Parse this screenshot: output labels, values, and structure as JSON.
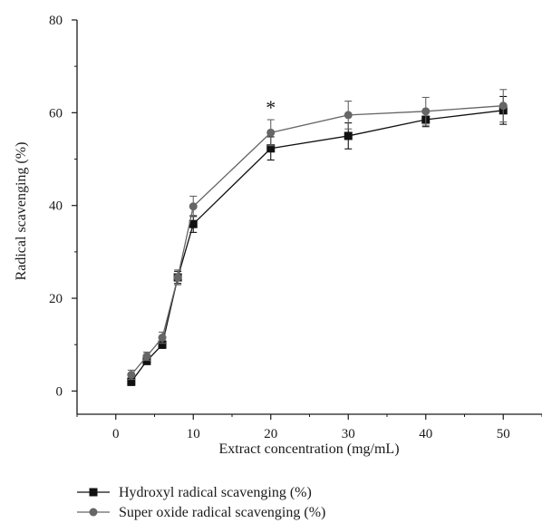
{
  "chart_data": {
    "type": "line",
    "title": "",
    "xlabel": "Extract concentration (mg/mL)",
    "ylabel": "Radical scavenging (%)",
    "xlim": [
      -5,
      55
    ],
    "ylim": [
      -5,
      80
    ],
    "xticks": [
      0,
      10,
      20,
      30,
      40,
      50
    ],
    "yticks": [
      0,
      20,
      40,
      60,
      80
    ],
    "x": [
      2,
      4,
      6,
      8,
      10,
      20,
      30,
      40,
      50
    ],
    "series": [
      {
        "name": "Hydroxyl radical scavenging (%)",
        "marker": "square",
        "color": "#111111",
        "values": [
          2.0,
          6.5,
          10.0,
          24.5,
          36.0,
          52.3,
          55.0,
          58.5,
          60.5
        ],
        "errors": [
          0.8,
          0.8,
          0.8,
          1.3,
          1.8,
          2.5,
          2.8,
          1.5,
          3.0
        ]
      },
      {
        "name": "Super oxide radical scavenging (%)",
        "marker": "circle",
        "color": "#666666",
        "values": [
          3.5,
          7.5,
          11.5,
          24.5,
          39.8,
          55.7,
          59.5,
          60.3,
          61.5
        ],
        "errors": [
          1.0,
          0.9,
          1.2,
          1.6,
          2.2,
          2.8,
          3.0,
          3.0,
          3.5
        ]
      }
    ],
    "annotations": [
      {
        "text": "*",
        "x": 20,
        "y": 60.5
      }
    ],
    "grid": false,
    "legend_position": "bottom-left"
  }
}
